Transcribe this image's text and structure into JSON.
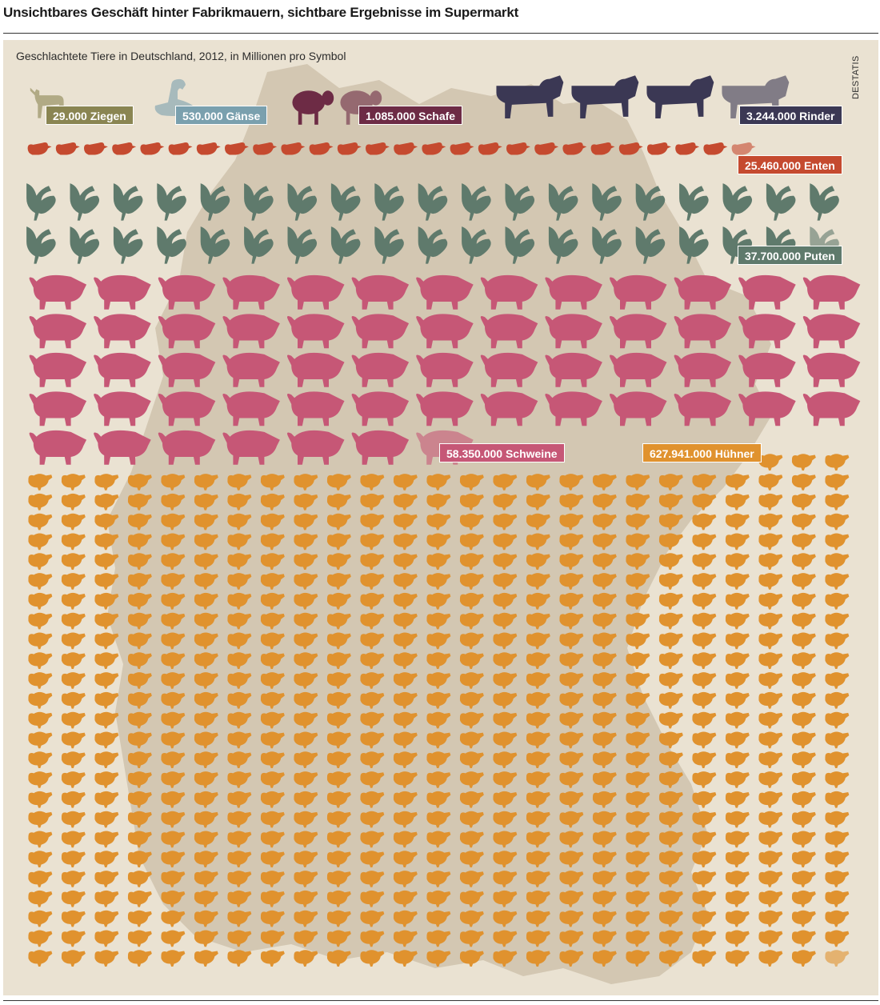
{
  "title": "Unsichtbares Geschäft hinter Fabrikmauern, sichtbare Ergebnisse im Supermarkt",
  "subtitle": "Geschlachtete Tiere in Deutschland, 2012, in Millionen pro Symbol",
  "source": "DESTATIS",
  "colors": {
    "background": "#eae2d2",
    "map": "#d3c7b2",
    "ziegen": "#8a8552",
    "gaense": "#7aa0ae",
    "schafe": "#6d2b45",
    "rinder": "#3b3854",
    "enten": "#c54a2f",
    "puten": "#5f7a6c",
    "schweine": "#c65776",
    "huehner": "#e0922e"
  },
  "chart_data": {
    "type": "pictogram",
    "unit": "1 Mio. Tiere pro Symbol",
    "series": [
      {
        "name": "Ziegen",
        "label": "29.000 Ziegen",
        "value": 29000,
        "icon": "goat-icon"
      },
      {
        "name": "Gänse",
        "label": "530.000 Gänse",
        "value": 530000,
        "icon": "goose-icon"
      },
      {
        "name": "Schafe",
        "label": "1.085.000 Schafe",
        "value": 1085000,
        "icon": "sheep-icon"
      },
      {
        "name": "Rinder",
        "label": "3.244.000 Rinder",
        "value": 3244000,
        "icon": "cow-icon"
      },
      {
        "name": "Enten",
        "label": "25.460.000 Enten",
        "value": 25460000,
        "icon": "duck-icon"
      },
      {
        "name": "Puten",
        "label": "37.700.000 Puten",
        "value": 37700000,
        "icon": "turkey-icon"
      },
      {
        "name": "Schweine",
        "label": "58.350.000 Schweine",
        "value": 58350000,
        "icon": "pig-icon"
      },
      {
        "name": "Hühner",
        "label": "627.941.000 Hühner",
        "value": 627941000,
        "icon": "chicken-icon"
      }
    ]
  }
}
